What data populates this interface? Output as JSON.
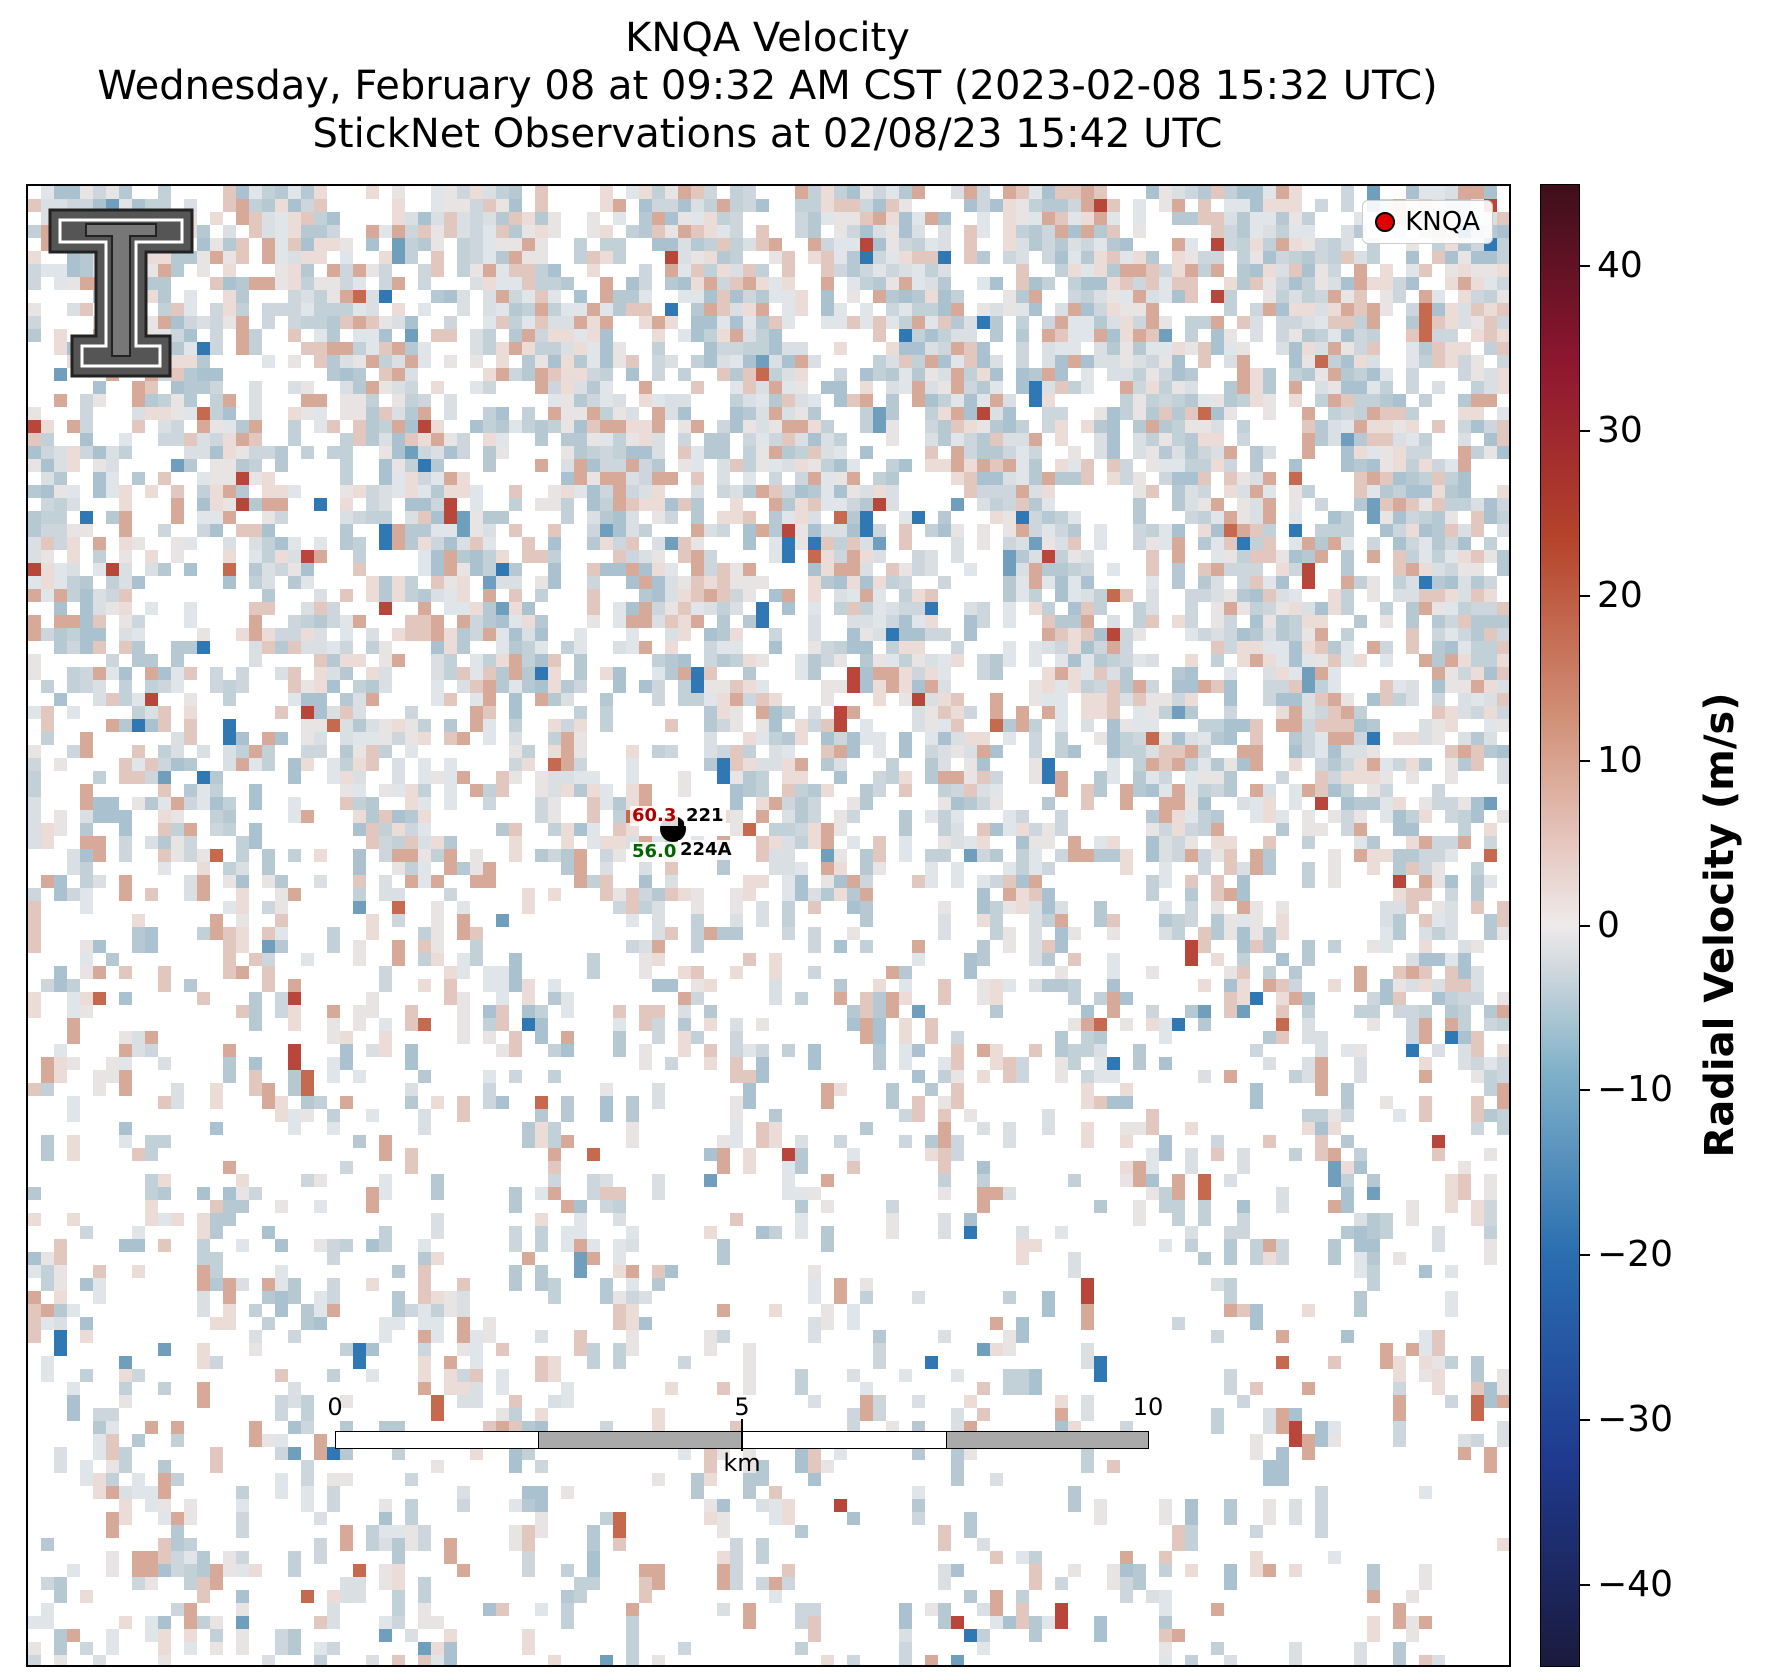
{
  "title": {
    "line1": "KNQA Velocity",
    "line2": "Wednesday, February 08 at 09:32 AM CST (2023-02-08 15:32 UTC)",
    "line3": "StickNet Observations at 02/08/23 15:42 UTC"
  },
  "legend": {
    "label": "KNQA",
    "marker_color": "#e00000"
  },
  "observations": [
    {
      "station": "221",
      "value": "60.3",
      "value_color": "#b00000"
    },
    {
      "station": "224A",
      "value": "56.0",
      "value_color": "#006400"
    }
  ],
  "scalebar": {
    "ticks": [
      "0",
      "5",
      "10"
    ],
    "unit": "km"
  },
  "colorbar": {
    "label": "Radial Velocity (m/s)",
    "ticks": [
      "40",
      "30",
      "20",
      "10",
      "0",
      "−10",
      "−20",
      "−30",
      "−40"
    ],
    "range": [
      -45,
      45
    ]
  },
  "logo": {
    "name": "texas-tech-double-t-logo"
  }
}
